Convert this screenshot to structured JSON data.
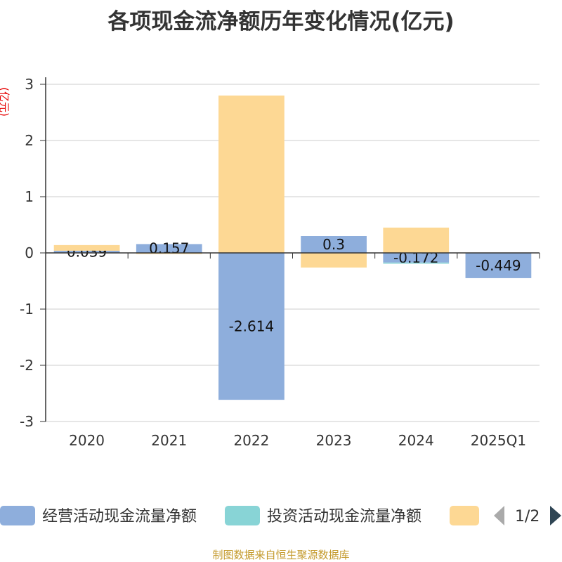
{
  "footer": "制图数据来自恒生聚源数据库",
  "legend": {
    "pager": "1/2",
    "prev_color": "#aaaaaa",
    "next_color": "#2f4554"
  },
  "chart_data": {
    "type": "bar",
    "stacked": true,
    "title": "各项现金流净额历年变化情况(亿元)",
    "ylabel": "(亿元)",
    "xlabel": "",
    "categories": [
      "2020",
      "2021",
      "2022",
      "2023",
      "2024",
      "2025Q1"
    ],
    "ylim": [
      -3,
      3
    ],
    "yticks": [
      "3",
      "2",
      "1",
      "0",
      "-1",
      "-2",
      "-3"
    ],
    "grid": true,
    "legend_position": "bottom",
    "series": [
      {
        "name": "经营活动现金流量净额",
        "color": "#8eaedc",
        "values": [
          0.039,
          0.157,
          -2.614,
          0.3,
          -0.172,
          -0.449
        ],
        "labels": [
          "0.039",
          "0.157",
          "-2.614",
          "0.3",
          "-0.172",
          "-0.449"
        ]
      },
      {
        "name": "投资活动现金流量净额",
        "color": "#88d4d6",
        "values": [
          0,
          0,
          0,
          0,
          -0.02,
          0
        ]
      },
      {
        "color": "#fdd894",
        "values": [
          0.1,
          -0.02,
          2.8,
          -0.26,
          0.45,
          0
        ]
      }
    ]
  }
}
